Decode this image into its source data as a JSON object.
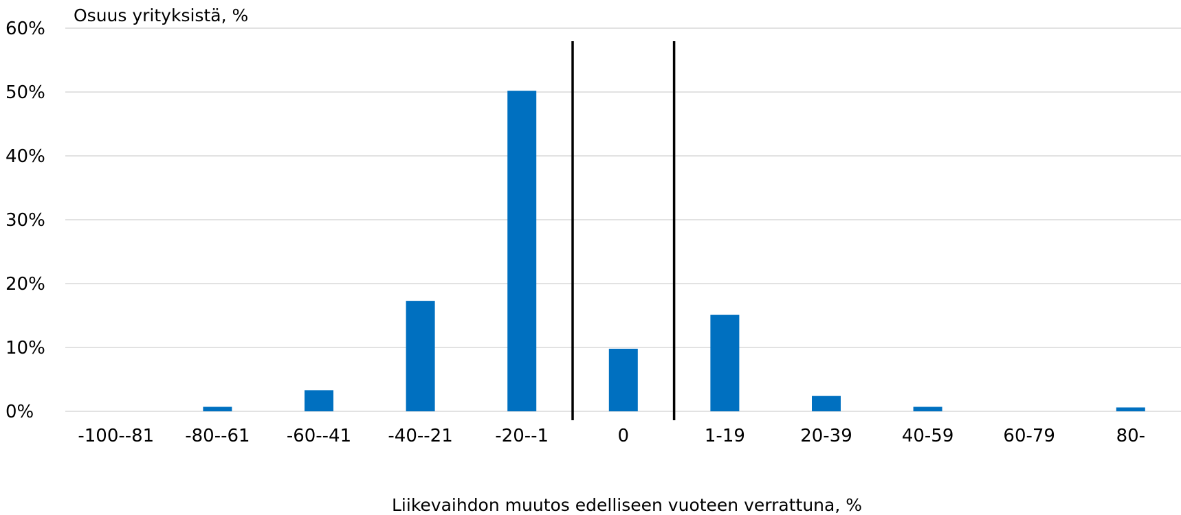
{
  "chart_data": {
    "type": "bar",
    "title": "",
    "ylabel": "Osuus yrityksistä, %",
    "xlabel": "Liikevaihdon muutos edelliseen vuoteen verrattuna, %",
    "categories": [
      "-100--81",
      "-80--61",
      "-60--41",
      "-40--21",
      "-20--1",
      "0",
      "1-19",
      "20-39",
      "40-59",
      "60-79",
      "80-"
    ],
    "values": [
      0,
      0.7,
      3.3,
      17.3,
      50.2,
      9.8,
      15.1,
      2.4,
      0.7,
      0,
      0.6
    ],
    "ylim": [
      0,
      60
    ],
    "yticks": [
      0,
      10,
      20,
      30,
      40,
      50,
      60
    ],
    "ytick_labels": [
      "0%",
      "10%",
      "20%",
      "30%",
      "40%",
      "50%",
      "60%"
    ],
    "grid": true,
    "separator_lines_around_category": "0",
    "bar_color": "#0070C0",
    "grid_color": "#D9D9D9",
    "separator_color": "#000000"
  }
}
